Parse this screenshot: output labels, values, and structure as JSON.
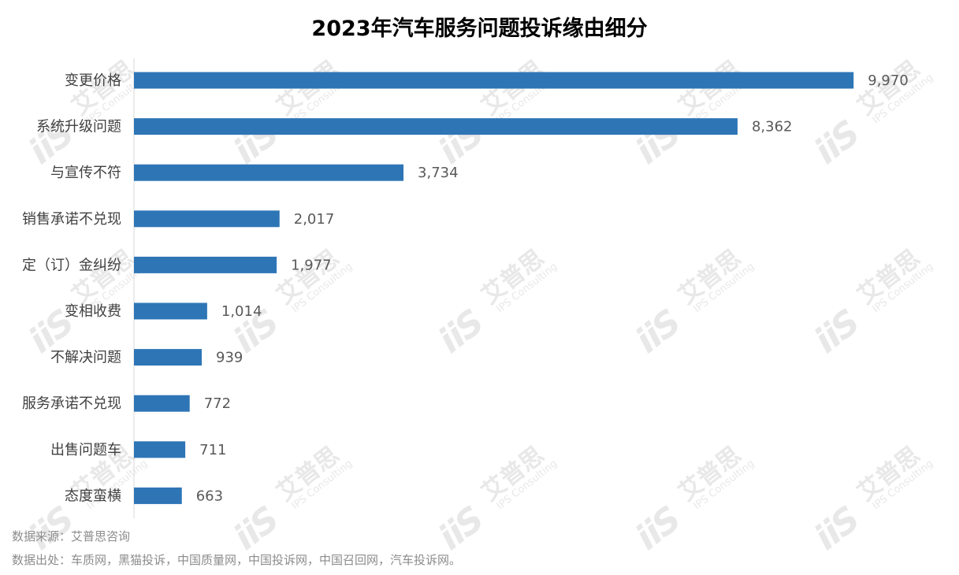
{
  "watermark": {
    "logo": "iiS",
    "name": "艾普思",
    "subtitle": "IPS Consulting"
  },
  "chart_data": {
    "type": "bar",
    "orientation": "horizontal",
    "title": "2023年汽车服务问题投诉缘由细分",
    "categories": [
      "变更价格",
      "系统升级问题",
      "与宣传不符",
      "销售承诺不兑现",
      "定（订）金纠纷",
      "变相收费",
      "不解决问题",
      "服务承诺不兑现",
      "出售问题车",
      "态度蛮横"
    ],
    "values": [
      9970,
      8362,
      3734,
      2017,
      1977,
      1014,
      939,
      772,
      711,
      663
    ],
    "value_labels": [
      "9,970",
      "8,362",
      "3,734",
      "2,017",
      "1,977",
      "1,014",
      "939",
      "772",
      "711",
      "663"
    ],
    "xlim": [
      0,
      10000
    ],
    "bar_color": "#2e75b6",
    "grid": false,
    "legend": "none"
  },
  "footnotes": {
    "source": "数据来源：艾普思咨询",
    "origin": "数据出处：车质网，黑猫投诉，中国质量网，中国投诉网，中国召回网，汽车投诉网。"
  }
}
